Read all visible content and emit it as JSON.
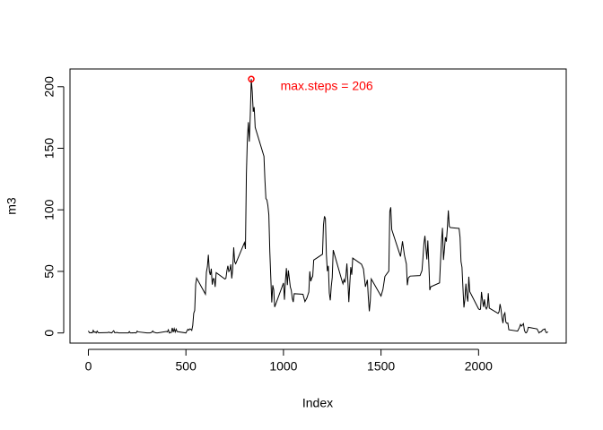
{
  "chart_data": {
    "type": "line",
    "x_label": "Index",
    "y_label": "m3",
    "x": [
      0,
      5,
      10,
      15,
      20,
      25,
      30,
      35,
      40,
      45,
      50,
      55,
      100,
      105,
      110,
      115,
      120,
      125,
      130,
      135,
      140,
      145,
      150,
      155,
      200,
      205,
      210,
      215,
      220,
      225,
      230,
      235,
      240,
      245,
      250,
      255,
      300,
      305,
      310,
      315,
      320,
      325,
      330,
      335,
      340,
      345,
      350,
      355,
      400,
      405,
      410,
      415,
      420,
      425,
      430,
      435,
      440,
      445,
      450,
      455,
      500,
      505,
      510,
      515,
      520,
      525,
      530,
      535,
      540,
      545,
      550,
      555,
      600,
      605,
      610,
      615,
      620,
      625,
      630,
      635,
      640,
      645,
      650,
      655,
      700,
      705,
      710,
      715,
      720,
      725,
      730,
      735,
      740,
      745,
      750,
      755,
      800,
      805,
      810,
      815,
      820,
      825,
      830,
      835,
      840,
      845,
      850,
      855,
      900,
      905,
      910,
      915,
      920,
      925,
      930,
      935,
      940,
      945,
      950,
      955,
      1000,
      1005,
      1010,
      1015,
      1020,
      1025,
      1030,
      1035,
      1040,
      1045,
      1050,
      1055,
      1100,
      1110,
      1120,
      1130,
      1135,
      1140,
      1145,
      1150,
      1155,
      1200,
      1205,
      1210,
      1215,
      1220,
      1225,
      1230,
      1235,
      1240,
      1245,
      1250,
      1255,
      1300,
      1305,
      1310,
      1315,
      1320,
      1325,
      1330,
      1335,
      1340,
      1345,
      1350,
      1355,
      1400,
      1410,
      1420,
      1430,
      1435,
      1440,
      1445,
      1450,
      1500,
      1510,
      1520,
      1530,
      1540,
      1545,
      1550,
      1555,
      1600,
      1610,
      1620,
      1630,
      1635,
      1640,
      1645,
      1650,
      1700,
      1710,
      1715,
      1720,
      1725,
      1730,
      1735,
      1740,
      1745,
      1750,
      1755,
      1800,
      1805,
      1810,
      1815,
      1820,
      1825,
      1830,
      1835,
      1840,
      1845,
      1850,
      1855,
      1900,
      1905,
      1910,
      1915,
      1920,
      1925,
      1930,
      1935,
      1940,
      1945,
      1950,
      1955,
      2000,
      2005,
      2010,
      2015,
      2020,
      2025,
      2030,
      2035,
      2040,
      2045,
      2050,
      2055,
      2100,
      2105,
      2110,
      2115,
      2120,
      2125,
      2130,
      2135,
      2140,
      2145,
      2150,
      2155,
      2200,
      2210,
      2215,
      2220,
      2225,
      2230,
      2235,
      2240,
      2245,
      2250,
      2255,
      2300,
      2310,
      2315,
      2320,
      2330,
      2340,
      2345,
      2350,
      2355
    ],
    "series": [
      {
        "name": "m3",
        "color": "#000000",
        "values": [
          1.7,
          0.3,
          0.1,
          0.2,
          0.1,
          2.1,
          0.5,
          0.9,
          0,
          1.5,
          0.3,
          0.1,
          0.3,
          0.7,
          0.2,
          0.3,
          0,
          1.1,
          1.8,
          0.2,
          0.2,
          0.4,
          0.3,
          0,
          0,
          0,
          1.1,
          0,
          0,
          0.1,
          0,
          0.2,
          0,
          0,
          1.5,
          0.9,
          0,
          0,
          0,
          0,
          0.2,
          0.6,
          1.6,
          0.6,
          0.5,
          0.1,
          0,
          0,
          1.2,
          0.9,
          2.6,
          0,
          0.3,
          0.4,
          4.1,
          0.7,
          3.5,
          0.8,
          3.1,
          1.1,
          0,
          1.6,
          3,
          2.2,
          3.3,
          3,
          2.1,
          6.1,
          16,
          18.3,
          39.5,
          44.5,
          31.5,
          49.3,
          53.8,
          63.5,
          50,
          47.1,
          52.2,
          39.3,
          44.1,
          44,
          37.4,
          49,
          43.8,
          44.4,
          50.5,
          54.5,
          49.9,
          50.98,
          55.7,
          44.3,
          52.3,
          69.5,
          57.8,
          56.2,
          73.4,
          68.2,
          129.4,
          157.5,
          171.2,
          155.4,
          177.3,
          206.17,
          195.9,
          179.6,
          183.4,
          167,
          143.5,
          124,
          109.1,
          108.1,
          103.7,
          95.97,
          66.2,
          45.2,
          24.8,
          38.8,
          34.98,
          21.1,
          40.6,
          27,
          42.4,
          52.7,
          38.9,
          50.8,
          44.3,
          37.4,
          34.7,
          28.3,
          25.1,
          31.9,
          31.4,
          25.5,
          28.4,
          33.3,
          50,
          42,
          44.6,
          46,
          59.2,
          63.9,
          87.7,
          94.8,
          92.8,
          63.4,
          50.2,
          54.5,
          32.4,
          26.5,
          37.7,
          45.1,
          67.3,
          42.3,
          39.9,
          43.3,
          40.98,
          46.2,
          56.4,
          42.8,
          25.1,
          39.96,
          53.5,
          47.3,
          60.8,
          55.8,
          51.96,
          37.5,
          43.1,
          28.7,
          17.6,
          26.1,
          43.9,
          30,
          35.5,
          45.96,
          48.1,
          50.3,
          98.7,
          102.1,
          83.96,
          62.1,
          74.5,
          63.2,
          56,
          38.8,
          44.7,
          45.5,
          46.2,
          46.6,
          50.7,
          61.2,
          72.7,
          78.9,
          68.9,
          59.7,
          75.1,
          56.5,
          34.8,
          37.5,
          40.7,
          58,
          74.7,
          85.3,
          59.3,
          67.8,
          77.7,
          74.2,
          85.3,
          99.5,
          86.6,
          85.6,
          84.9,
          77.8,
          58,
          53.4,
          36.3,
          20.7,
          27.4,
          40,
          30.2,
          25.5,
          45.7,
          33.5,
          19.6,
          19,
          19.3,
          33.3,
          26.8,
          21.2,
          27.3,
          21.3,
          19.5,
          21.3,
          32.3,
          20.2,
          15.9,
          17.2,
          23.5,
          19.2,
          12.5,
          8,
          14.7,
          16.3,
          8.7,
          7.8,
          8.1,
          2.6,
          1.5,
          4.6,
          6.9,
          5.6,
          6.5,
          7.6,
          2.2,
          0.3,
          0.1,
          1.6,
          4.6,
          3.3,
          0,
          0.8,
          0.96,
          2.6,
          3.3,
          0.6,
          0.2,
          1.1
        ]
      }
    ],
    "highlight": {
      "x": 835,
      "y": 206.17,
      "color": "#ff0000"
    },
    "annotation": {
      "text": "max.steps = 206",
      "x": 1222,
      "y": 200,
      "color": "#ff0000"
    },
    "xlim": [
      -94.2,
      2449.2
    ],
    "ylim": [
      -8.24,
      214.4
    ],
    "xticks": [
      0,
      500,
      1000,
      1500,
      2000
    ],
    "yticks": [
      0,
      50,
      100,
      150,
      200
    ],
    "grid": false
  }
}
